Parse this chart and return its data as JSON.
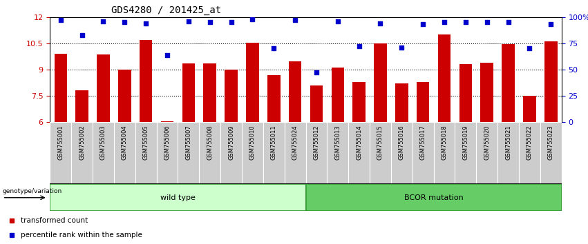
{
  "title": "GDS4280 / 201425_at",
  "categories": [
    "GSM755001",
    "GSM755002",
    "GSM755003",
    "GSM755004",
    "GSM755005",
    "GSM755006",
    "GSM755007",
    "GSM755008",
    "GSM755009",
    "GSM755010",
    "GSM755011",
    "GSM755024",
    "GSM755012",
    "GSM755013",
    "GSM755014",
    "GSM755015",
    "GSM755016",
    "GSM755017",
    "GSM755018",
    "GSM755019",
    "GSM755020",
    "GSM755021",
    "GSM755022",
    "GSM755023"
  ],
  "bar_values": [
    9.9,
    7.8,
    9.85,
    9.0,
    10.7,
    6.05,
    9.35,
    9.35,
    9.0,
    10.55,
    8.7,
    9.45,
    8.1,
    9.1,
    8.3,
    10.5,
    8.2,
    8.3,
    11.0,
    9.3,
    9.4,
    10.45,
    7.5,
    10.6
  ],
  "percentile_values": [
    97,
    83,
    96,
    95,
    94,
    64,
    96,
    95,
    95,
    98,
    70,
    97,
    47,
    96,
    72,
    94,
    71,
    93,
    95,
    95,
    95,
    95,
    70,
    93
  ],
  "bar_color": "#cc0000",
  "dot_color": "#0000cc",
  "ylim_left": [
    6,
    12
  ],
  "ylim_right": [
    0,
    100
  ],
  "yticks_left": [
    6,
    7.5,
    9,
    10.5,
    12
  ],
  "yticks_right": [
    0,
    25,
    50,
    75,
    100
  ],
  "ytick_labels_left": [
    "6",
    "7.5",
    "9",
    "10.5",
    "12"
  ],
  "ytick_labels_right": [
    "0",
    "25",
    "50",
    "75",
    "100%"
  ],
  "grid_values": [
    7.5,
    9.0,
    10.5
  ],
  "wild_type_count": 12,
  "bcor_count": 12,
  "wild_type_label": "wild type",
  "bcor_label": "BCOR mutation",
  "genotype_label": "genotype/variation",
  "legend_bar_label": "transformed count",
  "legend_dot_label": "percentile rank within the sample",
  "wild_type_color": "#ccffcc",
  "bcor_color": "#66cc66",
  "header_bg": "#cccccc"
}
